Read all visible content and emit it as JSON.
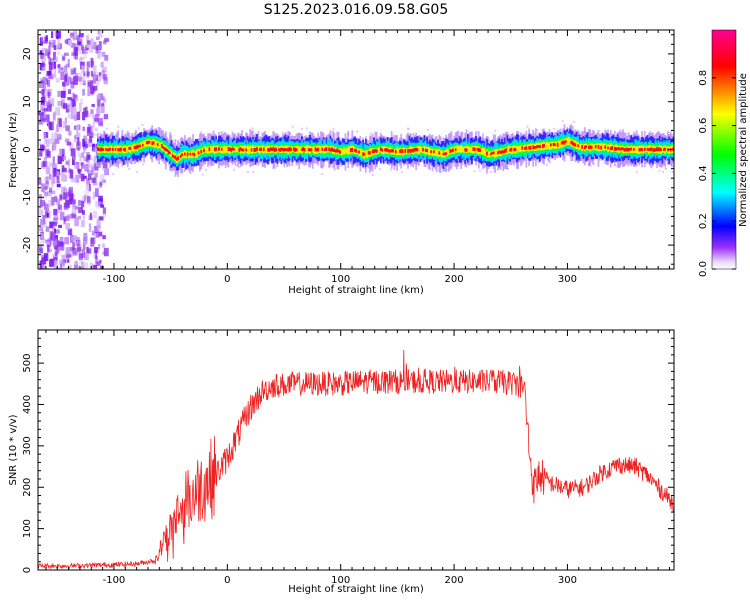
{
  "title": "S125.2023.016.09.58.G05",
  "chart_data": [
    {
      "type": "heatmap",
      "xlabel": "Height of straight line (km)",
      "ylabel": "Frequency (Hz)",
      "xlim": [
        -167,
        394
      ],
      "ylim": [
        -25,
        25
      ],
      "x_ticks": [
        -100,
        0,
        100,
        200,
        300
      ],
      "y_ticks": [
        -20,
        -10,
        0,
        10,
        20
      ],
      "colorbar": {
        "label": "Normalized spectral amplitude",
        "range": [
          0,
          1
        ],
        "ticks": [
          0.0,
          0.2,
          0.4,
          0.6,
          0.8
        ],
        "tick_labels": [
          "0.0",
          "0.2",
          "0.4",
          "0.6",
          "0.8"
        ],
        "colors": [
          "#ffffff",
          "#9b30ff",
          "#0000ff",
          "#00ffff",
          "#00ff00",
          "#ffff00",
          "#ff0000",
          "#ff0080"
        ]
      },
      "trace": {
        "x": [
          -110,
          -90,
          -80,
          -70,
          -60,
          -55,
          -45,
          -40,
          -30,
          -20,
          0,
          50,
          90,
          100,
          110,
          120,
          135,
          150,
          170,
          190,
          200,
          220,
          230,
          250,
          270,
          290,
          300,
          310,
          330,
          350,
          370,
          394
        ],
        "y": [
          0,
          0,
          0.5,
          1.5,
          1,
          0,
          -2,
          -1,
          -1,
          0,
          0,
          0,
          0,
          -0.5,
          0,
          -1,
          0,
          -0.5,
          0,
          -1,
          0,
          0,
          -1,
          0,
          0.5,
          1,
          1.8,
          0.5,
          0.5,
          0,
          0,
          0
        ]
      },
      "grid": false
    },
    {
      "type": "line",
      "xlabel": "Height of straight line (km)",
      "ylabel": "SNR (10 * v/v)",
      "xlim": [
        -167,
        394
      ],
      "ylim": [
        0,
        580
      ],
      "x_ticks": [
        -100,
        0,
        100,
        200,
        300
      ],
      "y_ticks": [
        0,
        100,
        200,
        300,
        400,
        500
      ],
      "series": [
        {
          "color": "#ee2222",
          "x": [
            -167,
            -140,
            -110,
            -80,
            -70,
            -62,
            -58,
            -50,
            -45,
            -40,
            -35,
            -30,
            -20,
            -10,
            0,
            10,
            20,
            30,
            40,
            60,
            80,
            100,
            120,
            140,
            160,
            180,
            200,
            220,
            240,
            255,
            262,
            266,
            270,
            275,
            285,
            300,
            315,
            330,
            345,
            360,
            370,
            380,
            394
          ],
          "y": [
            10,
            10,
            12,
            15,
            20,
            25,
            60,
            100,
            130,
            160,
            170,
            185,
            210,
            230,
            270,
            330,
            390,
            430,
            445,
            450,
            450,
            450,
            455,
            455,
            455,
            455,
            455,
            455,
            455,
            450,
            440,
            300,
            200,
            230,
            210,
            195,
            200,
            235,
            255,
            250,
            230,
            200,
            160
          ]
        }
      ],
      "grid": false
    }
  ]
}
